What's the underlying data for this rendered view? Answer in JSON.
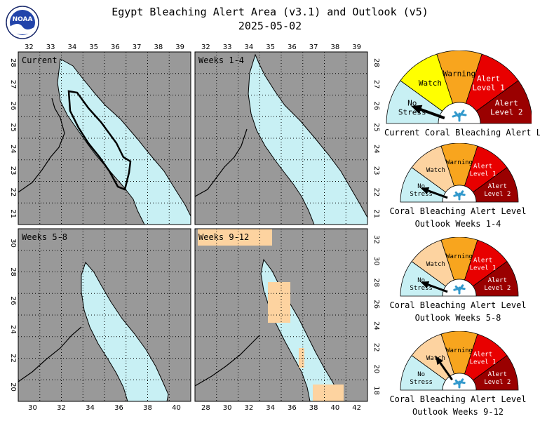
{
  "title": "Egypt Bleaching Alert Area (v3.1) and Outlook (v5)",
  "date": "2025-05-02",
  "logo_text": "NOAA",
  "colors": {
    "land": "#999999",
    "sea_alert": "#c8f0f4",
    "watch_sea": "#fdd3a0",
    "no_stress": "#c8f0f4",
    "watch_light": "#fdd3a0",
    "watch_yellow": "#ffff00",
    "warning": "#f8a51e",
    "alert1": "#e80000",
    "alert2": "#9a0000",
    "coral": "#3399cc"
  },
  "panels": [
    {
      "label": "Current",
      "top_ticks": [
        "32",
        "33",
        "34",
        "35",
        "36",
        "37",
        "38",
        "39"
      ],
      "left_ticks": [
        "21",
        "22",
        "23",
        "24",
        "25",
        "26",
        "27",
        "28"
      ],
      "right_ticks": []
    },
    {
      "label": "Weeks 1-4",
      "top_ticks": [
        "32",
        "33",
        "34",
        "35",
        "36",
        "37",
        "38",
        "39"
      ],
      "left_ticks": [],
      "right_ticks": [
        "21",
        "22",
        "23",
        "24",
        "25",
        "26",
        "27",
        "28"
      ]
    },
    {
      "label": "Weeks 5-8",
      "bottom_ticks": [
        "30",
        "32",
        "34",
        "36",
        "38",
        "40"
      ],
      "left_ticks": [
        "20",
        "22",
        "24",
        "26",
        "28",
        "30"
      ],
      "right_ticks": []
    },
    {
      "label": "Weeks 9-12",
      "bottom_ticks": [
        "28",
        "30",
        "32",
        "34",
        "36",
        "38",
        "40",
        "42"
      ],
      "left_ticks": [],
      "right_ticks": [
        "18",
        "20",
        "22",
        "24",
        "26",
        "28",
        "30",
        "32"
      ]
    }
  ],
  "gauges": [
    {
      "labels": {
        "no_stress": "No Stress",
        "watch": "Watch",
        "warning": "Warning",
        "alert1": "Alert Level 1",
        "alert2": "Alert Level 2"
      },
      "caption1": "Current Coral Bleaching Alert Level",
      "caption2": "",
      "level": "No Stress"
    },
    {
      "labels": {
        "no_stress": "No Stress",
        "watch": "Watch",
        "warning": "Warning",
        "alert1": "Alert Level 1",
        "alert2": "Alert Level 2"
      },
      "caption1": "Coral Bleaching Alert Level",
      "caption2": "Outlook Weeks 1-4",
      "level": "No Stress"
    },
    {
      "labels": {
        "no_stress": "No Stress",
        "watch": "Watch",
        "warning": "Warning",
        "alert1": "Alert Level 1",
        "alert2": "Alert Level 2"
      },
      "caption1": "Coral Bleaching Alert Level",
      "caption2": "Outlook Weeks 5-8",
      "level": "No Stress"
    },
    {
      "labels": {
        "no_stress": "No Stress",
        "watch": "Watch",
        "warning": "Warning",
        "alert1": "Alert Level 1",
        "alert2": "Alert Level 2"
      },
      "caption1": "Coral Bleaching Alert Level",
      "caption2": "Outlook Weeks 9-12",
      "level": "Watch"
    }
  ],
  "chart_data": {
    "type": "heatmap",
    "title": "Egypt Bleaching Alert Area (v3.1) and Outlook (v5)",
    "subtitle": "2025-05-02",
    "panels": [
      {
        "name": "Current",
        "lon_ticks": [
          32,
          33,
          34,
          35,
          36,
          37,
          38,
          39
        ],
        "lat_ticks": [
          21,
          22,
          23,
          24,
          25,
          26,
          27,
          28
        ],
        "alert_level": "No Stress"
      },
      {
        "name": "Weeks 1-4",
        "lon_ticks": [
          32,
          33,
          34,
          35,
          36,
          37,
          38,
          39
        ],
        "lat_ticks": [
          21,
          22,
          23,
          24,
          25,
          26,
          27,
          28
        ],
        "alert_level": "No Stress"
      },
      {
        "name": "Weeks 5-8",
        "lon_ticks": [
          30,
          32,
          34,
          36,
          38,
          40
        ],
        "lat_ticks": [
          20,
          22,
          24,
          26,
          28,
          30
        ],
        "alert_level": "No Stress"
      },
      {
        "name": "Weeks 9-12",
        "lon_ticks": [
          28,
          30,
          32,
          34,
          36,
          38,
          40,
          42
        ],
        "lat_ticks": [
          18,
          20,
          22,
          24,
          26,
          28,
          30,
          32
        ],
        "alert_level": "Watch"
      }
    ],
    "legend": [
      "No Stress",
      "Watch",
      "Warning",
      "Alert Level 1",
      "Alert Level 2"
    ]
  }
}
